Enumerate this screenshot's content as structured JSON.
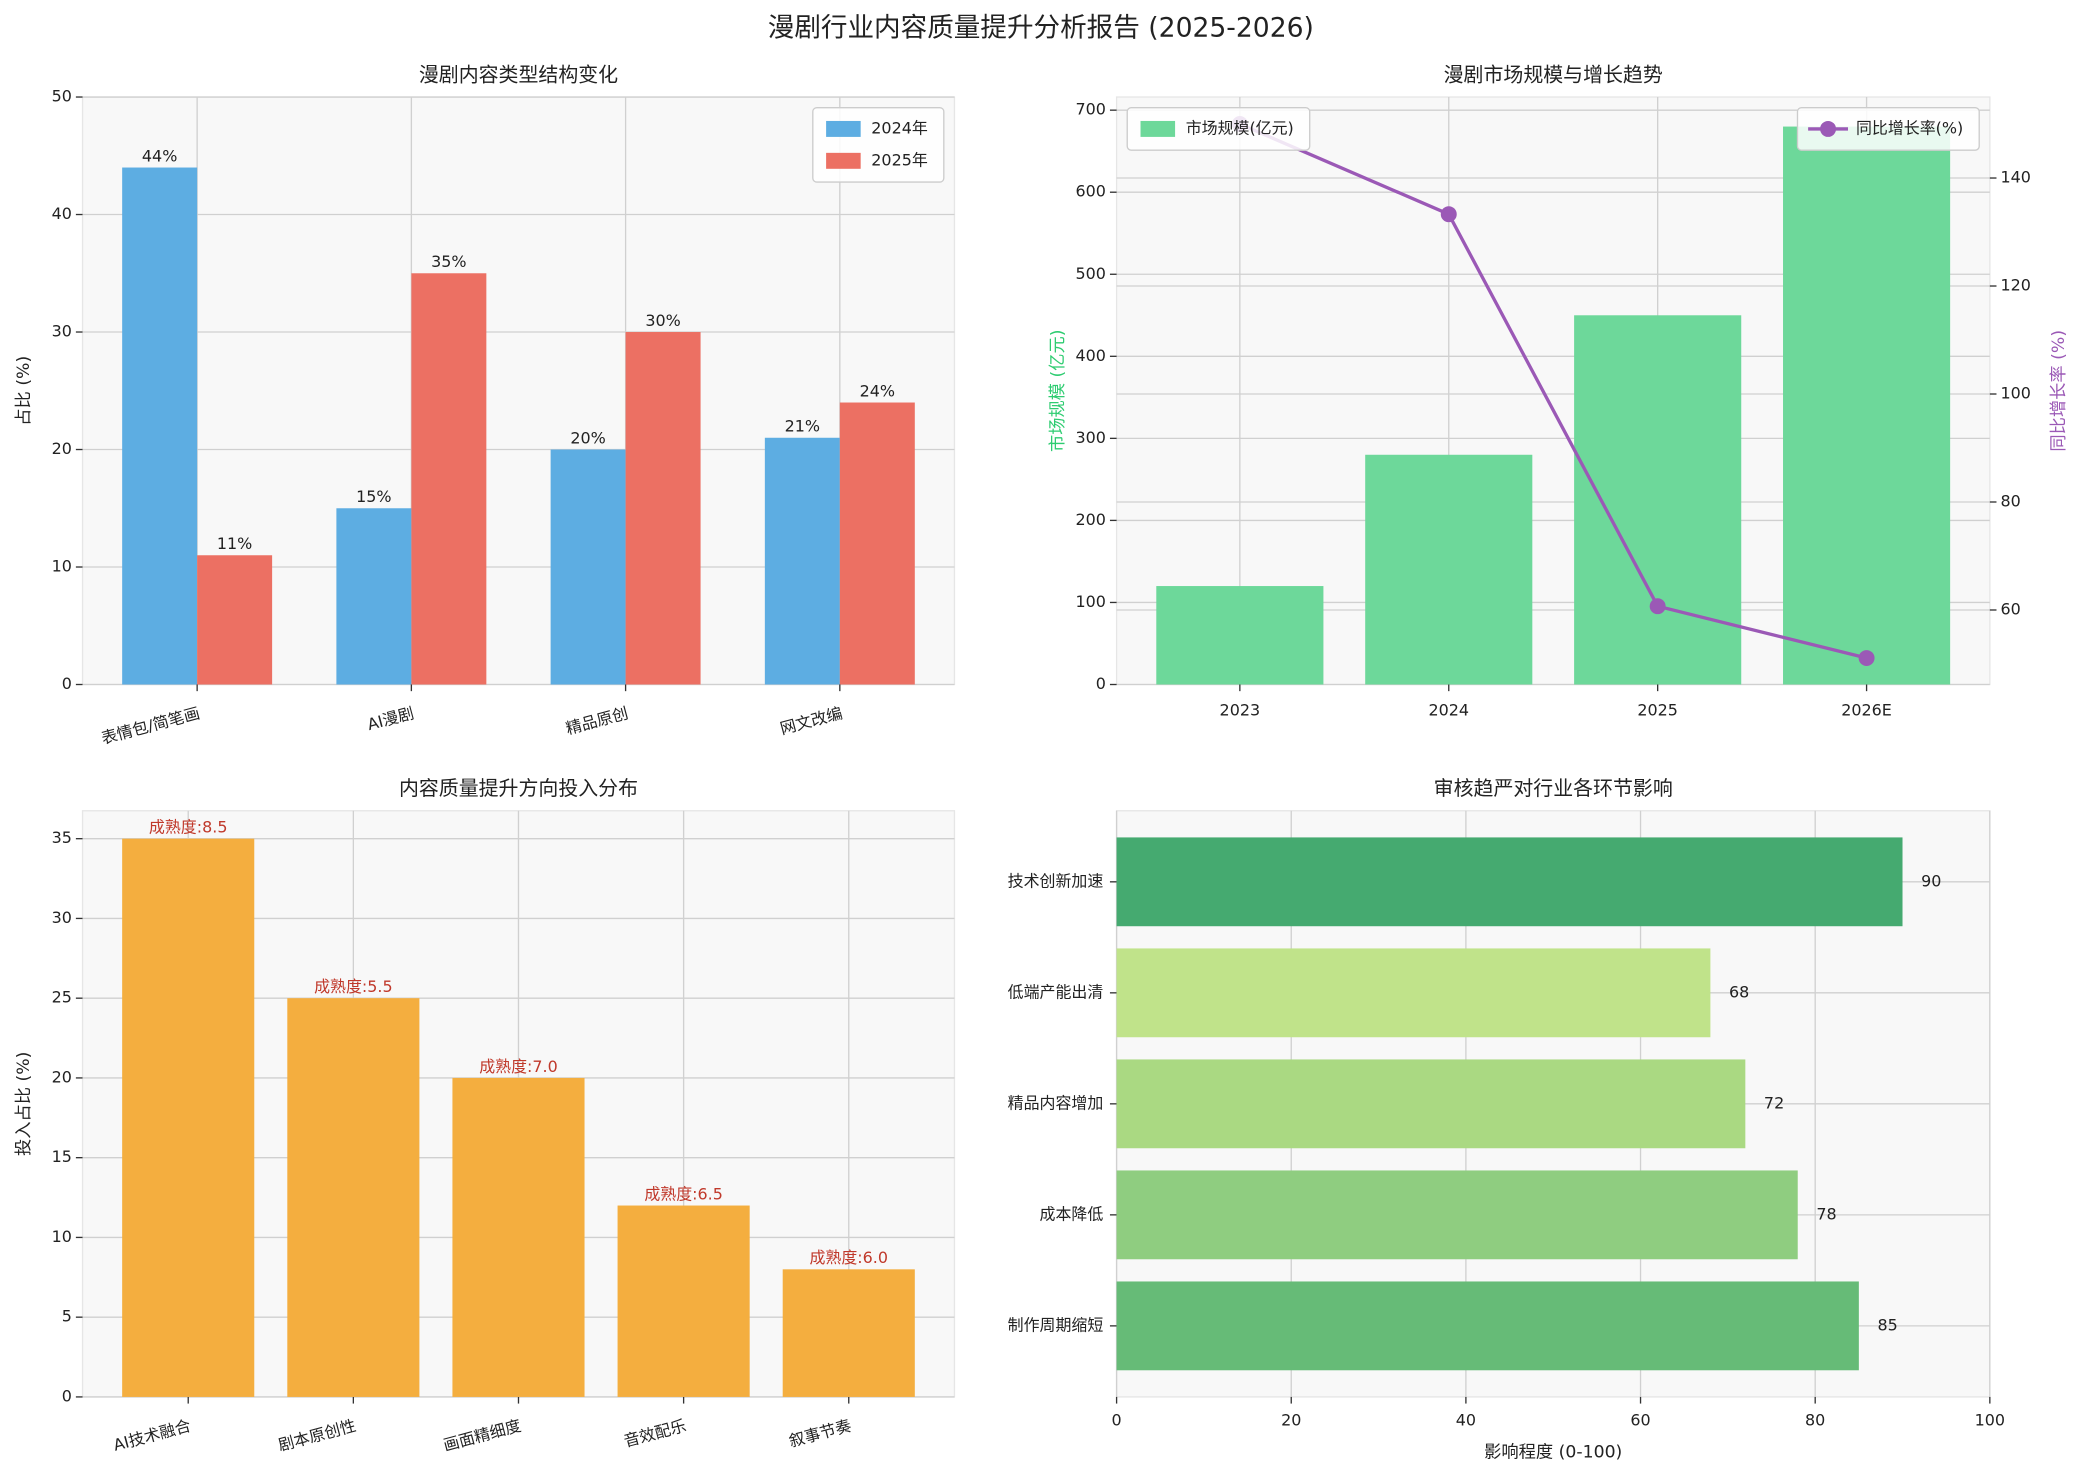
{
  "title": "漫剧行业内容质量提升分析报告 (2025-2026)",
  "chart_data": [
    {
      "type": "bar",
      "title": "漫剧内容类型结构变化",
      "ylabel": "占比 (%)",
      "categories": [
        "表情包/简笔画",
        "AI漫剧",
        "精品原创",
        "网文改编"
      ],
      "series": [
        {
          "name": "2024年",
          "color": "#5dade2",
          "values": [
            44,
            15,
            20,
            21
          ],
          "value_labels": [
            "44%",
            "15%",
            "20%",
            "21%"
          ]
        },
        {
          "name": "2025年",
          "color": "#ec7063",
          "values": [
            11,
            35,
            30,
            24
          ],
          "value_labels": [
            "11%",
            "35%",
            "30%",
            "24%"
          ]
        }
      ],
      "ylim": [
        0,
        50
      ],
      "yticks": [
        0,
        10,
        20,
        30,
        40,
        50
      ],
      "grid": true,
      "legend": "upper right"
    },
    {
      "type": "bar",
      "title": "漫剧市场规模与增长趋势",
      "ylabel": "市场规模 (亿元)",
      "ylabel_color": "#2ecc71",
      "y2label": "同比增长率 (%)",
      "y2label_color": "#9b59b6",
      "categories": [
        "2023",
        "2024",
        "2025",
        "2026E"
      ],
      "series": [
        {
          "name": "市场规模(亿元)",
          "color": "#6dd89a",
          "values": [
            120,
            280,
            450,
            680
          ],
          "legend": "upper left"
        },
        {
          "name": "同比增长率(%)",
          "type": "line",
          "axis": "y2",
          "color": "#9b59b6",
          "values": [
            150,
            133.3,
            60.7,
            51.1
          ],
          "legend": "upper right"
        }
      ],
      "ylim": [
        0,
        716
      ],
      "yticks": [
        0,
        100,
        200,
        300,
        400,
        500,
        600,
        700
      ],
      "y2lim": [
        46.2,
        155
      ],
      "y2ticks": [
        60,
        80,
        100,
        120,
        140
      ],
      "grid": true
    },
    {
      "type": "bar",
      "title": "内容质量提升方向投入分布",
      "ylabel": "投入占比 (%)",
      "categories": [
        "AI技术融合",
        "剧本原创性",
        "画面精细度",
        "音效配乐",
        "叙事节奏"
      ],
      "series": [
        {
          "color": "#f4ae3f",
          "values": [
            35,
            25,
            20,
            12,
            8
          ]
        }
      ],
      "annotations": [
        "成熟度:8.5",
        "成熟度:5.5",
        "成熟度:7.0",
        "成熟度:6.5",
        "成熟度:6.0"
      ],
      "annotation_color": "#c0392b",
      "ylim": [
        0,
        36.75
      ],
      "yticks": [
        0,
        5,
        10,
        15,
        20,
        25,
        30,
        35
      ],
      "grid": true
    },
    {
      "type": "barh",
      "title": "审核趋严对行业各环节影响",
      "xlabel": "影响程度 (0-100)",
      "categories": [
        "制作周期缩短",
        "成本降低",
        "精品内容增加",
        "低端产能出清",
        "技术创新加速"
      ],
      "values": [
        85,
        78,
        72,
        68,
        90
      ],
      "colors": [
        "#66bb77",
        "#8fcd80",
        "#aad982",
        "#c0e38a",
        "#45aa70"
      ],
      "xlim": [
        0,
        100
      ],
      "xticks": [
        0,
        20,
        40,
        60,
        80,
        100
      ],
      "grid": true
    }
  ]
}
